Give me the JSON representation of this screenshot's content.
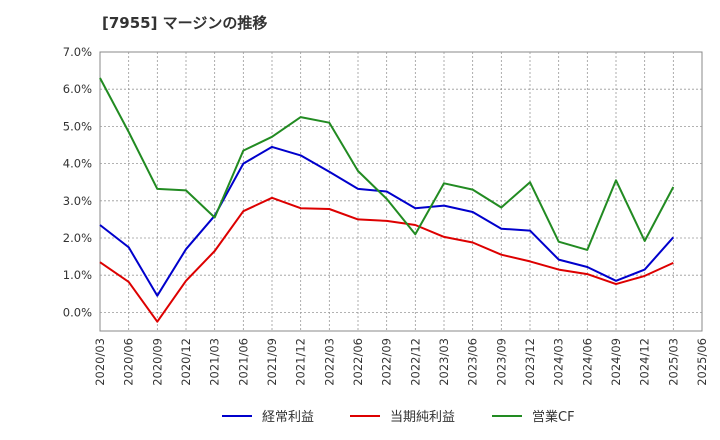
{
  "title": "[7955]  マージンの推移",
  "chart_data": {
    "type": "line",
    "title": "[7955]  マージンの推移",
    "xlabel": "",
    "ylabel": "",
    "categories": [
      "2020/03",
      "2020/06",
      "2020/09",
      "2020/12",
      "2021/03",
      "2021/06",
      "2021/09",
      "2021/12",
      "2022/03",
      "2022/06",
      "2022/09",
      "2022/12",
      "2023/03",
      "2023/06",
      "2023/09",
      "2023/12",
      "2024/03",
      "2024/06",
      "2024/09",
      "2024/12",
      "2025/03",
      "2025/06"
    ],
    "ylim": [
      -0.5,
      7.0
    ],
    "yticks": [
      0.0,
      1.0,
      2.0,
      3.0,
      4.0,
      5.0,
      6.0,
      7.0
    ],
    "ytick_labels": [
      "0.0%",
      "1.0%",
      "2.0%",
      "3.0%",
      "4.0%",
      "5.0%",
      "6.0%",
      "7.0%"
    ],
    "grid": true,
    "legend_position": "bottom",
    "series": [
      {
        "name": "経常利益",
        "color": "#0000cc",
        "values": [
          2.35,
          1.75,
          0.45,
          1.7,
          2.6,
          4.0,
          4.45,
          4.22,
          3.78,
          3.32,
          3.25,
          2.8,
          2.87,
          2.7,
          2.25,
          2.2,
          1.42,
          1.22,
          0.85,
          1.15,
          2.02,
          null
        ]
      },
      {
        "name": "当期純利益",
        "color": "#dd0000",
        "values": [
          1.35,
          0.82,
          -0.25,
          0.85,
          1.65,
          2.72,
          3.08,
          2.8,
          2.78,
          2.5,
          2.46,
          2.35,
          2.03,
          1.88,
          1.55,
          1.37,
          1.15,
          1.03,
          0.76,
          0.98,
          1.33,
          null
        ]
      },
      {
        "name": "営業CF",
        "color": "#228b22",
        "values": [
          6.3,
          4.85,
          3.32,
          3.28,
          2.55,
          4.35,
          4.72,
          5.25,
          5.1,
          3.8,
          3.05,
          2.1,
          3.47,
          3.3,
          2.82,
          3.5,
          1.9,
          1.68,
          3.55,
          1.92,
          3.37,
          null
        ]
      }
    ]
  }
}
